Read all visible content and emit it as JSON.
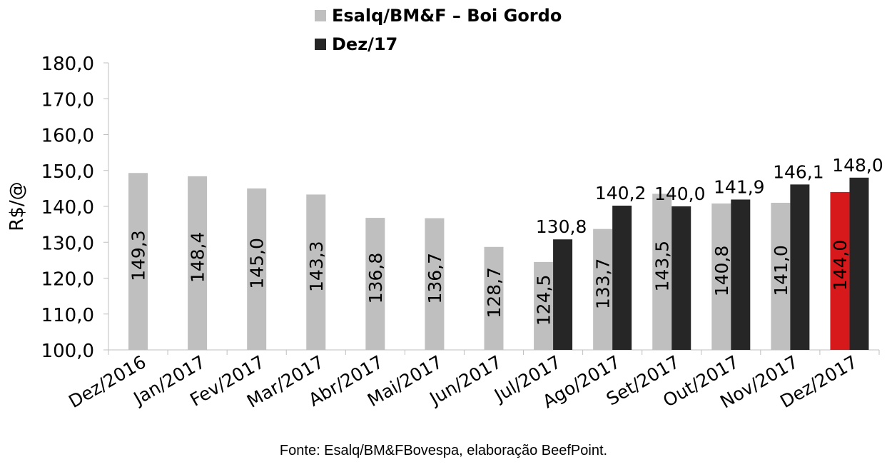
{
  "legend": [
    {
      "label": "Esalq/BM&F – Boi Gordo",
      "color": "#bfbfbf"
    },
    {
      "label": "Dez/17",
      "color": "#262626"
    }
  ],
  "source_note": "Fonte: Esalq/BM&FBovespa, elaboração BeefPoint.",
  "chart_data": {
    "type": "bar",
    "title": "",
    "xlabel": "",
    "ylabel": "R$/@",
    "ylim": [
      100,
      180
    ],
    "yticks": [
      "100,0",
      "110,0",
      "120,0",
      "130,0",
      "140,0",
      "150,0",
      "160,0",
      "170,0",
      "180,0"
    ],
    "categories": [
      "Dez/2016",
      "Jan/2017",
      "Fev/2017",
      "Mar/2017",
      "Abr/2017",
      "Mai/2017",
      "Jun/2017",
      "Jul/2017",
      "Ago/2017",
      "Set/2017",
      "Out/2017",
      "Nov/2017",
      "Dez/2017"
    ],
    "series": [
      {
        "name": "Esalq/BM&F – Boi Gordo",
        "color": "#bfbfbf",
        "highlight": {
          "index": 12,
          "color": "#d7191c"
        },
        "values": [
          149.3,
          148.4,
          145.0,
          143.3,
          136.8,
          136.7,
          128.7,
          124.5,
          133.7,
          143.5,
          140.8,
          141.0,
          144.0
        ],
        "labels": [
          "149,3",
          "148,4",
          "145,0",
          "143,3",
          "136,8",
          "136,7",
          "128,7",
          "124,5",
          "133,7",
          "143,5",
          "140,8",
          "141,0",
          "144,0"
        ]
      },
      {
        "name": "Dez/17",
        "color": "#262626",
        "values": [
          null,
          null,
          null,
          null,
          null,
          null,
          null,
          130.8,
          140.2,
          140.0,
          141.9,
          146.1,
          148.0
        ],
        "labels": [
          null,
          null,
          null,
          null,
          null,
          null,
          null,
          "130,8",
          "140,2",
          "140,0",
          "141,9",
          "146,1",
          "148,0"
        ]
      }
    ],
    "grid": false,
    "legend_position": "top"
  }
}
